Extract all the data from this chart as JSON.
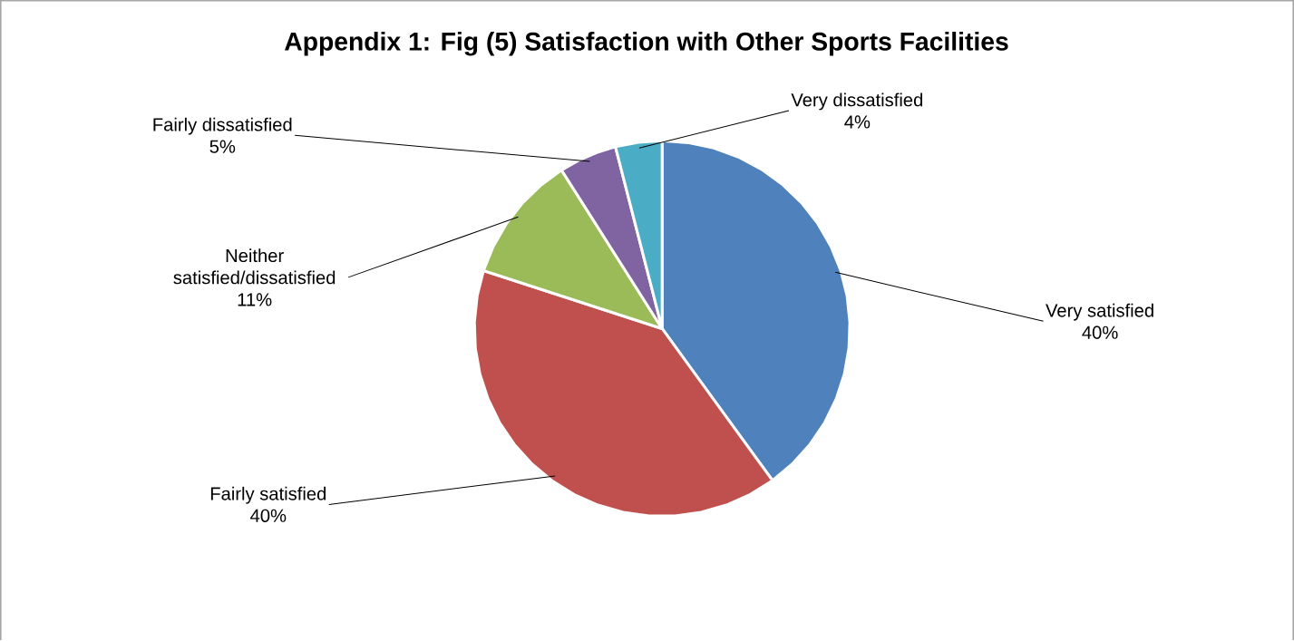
{
  "chart_data": {
    "type": "pie",
    "title": "Appendix 1: Fig (5) Satisfaction with Other Sports Facilities",
    "categories": [
      "Very satisfied",
      "Fairly satisfied",
      "Neither satisfied/dissatisfied",
      "Fairly dissatisfied",
      "Very dissatisfied"
    ],
    "values": [
      40,
      40,
      11,
      5,
      4
    ],
    "value_labels": [
      "40%",
      "40%",
      "11%",
      "5%",
      "4%"
    ],
    "colors": [
      "#4f81bd",
      "#c0504d",
      "#9bbb59",
      "#8064a2",
      "#4bacc6"
    ]
  }
}
